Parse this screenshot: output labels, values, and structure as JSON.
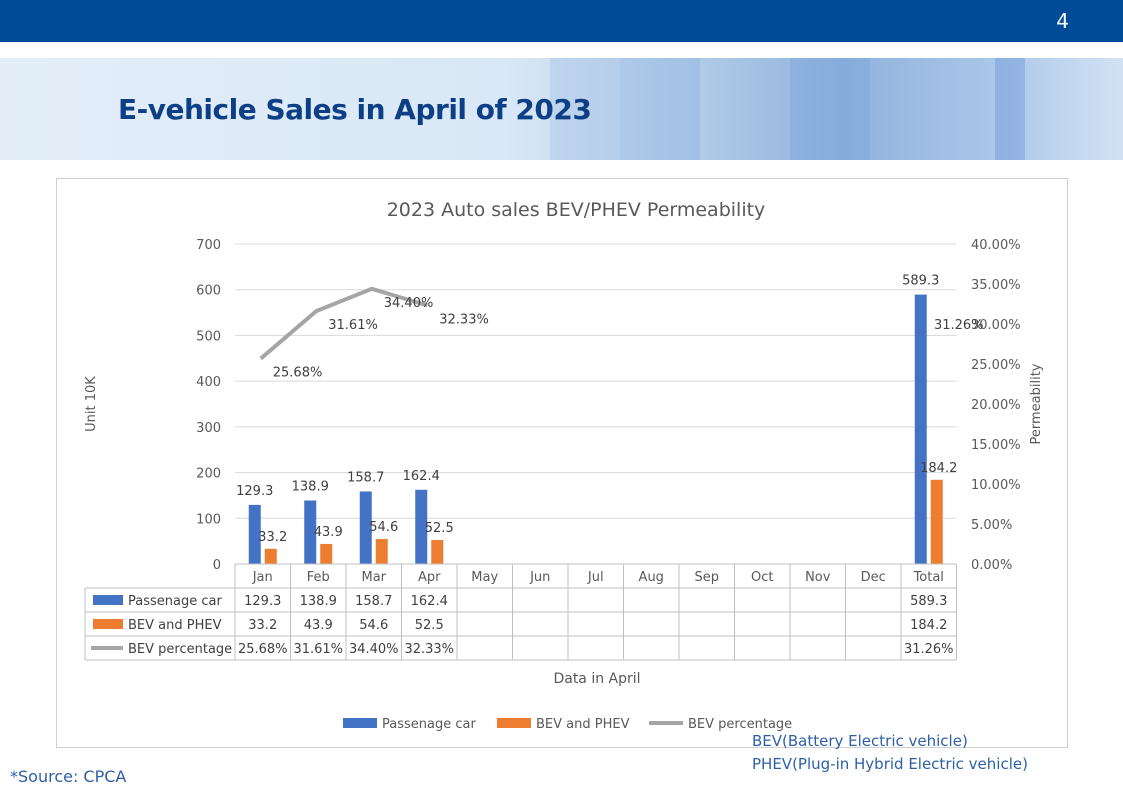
{
  "page_number": "4",
  "slide_title": "E-vehicle Sales in April of 2023",
  "notes": {
    "bev": "BEV(Battery Electric vehicle)",
    "phev": "PHEV(Plug-in Hybrid Electric vehicle)"
  },
  "source": "*Source:  CPCA",
  "colors": {
    "header": "#004b97",
    "title": "#0d3f86",
    "passenger": "#4472c4",
    "bev_phev": "#ed7d31",
    "percentage": "#a5a5a5",
    "note": "#2e5fa8"
  },
  "chart_data": {
    "type": "bar",
    "title": "2023 Auto sales BEV/PHEV Permeability",
    "xlabel": "Data in April",
    "ylabel": "Unit 10K",
    "y2label": "Permeability",
    "ylim": [
      0,
      700
    ],
    "yticks": [
      "0",
      "100",
      "200",
      "300",
      "400",
      "500",
      "600",
      "700"
    ],
    "y2lim": [
      0,
      40
    ],
    "y2ticks": [
      "0.00%",
      "5.00%",
      "10.00%",
      "15.00%",
      "20.00%",
      "25.00%",
      "30.00%",
      "35.00%",
      "40.00%"
    ],
    "categories": [
      "Jan",
      "Feb",
      "Mar",
      "Apr",
      "May",
      "Jun",
      "Jul",
      "Aug",
      "Sep",
      "Oct",
      "Nov",
      "Dec",
      "Total"
    ],
    "grid": "horizontal",
    "legend_position": "bottom",
    "series": [
      {
        "name": "Passenage car",
        "type": "bar",
        "color": "#4472c4",
        "values": [
          129.3,
          138.9,
          158.7,
          162.4,
          null,
          null,
          null,
          null,
          null,
          null,
          null,
          null,
          589.3
        ],
        "labels": [
          "129.3",
          "138.9",
          "158.7",
          "162.4",
          "",
          "",
          "",
          "",
          "",
          "",
          "",
          "",
          "589.3"
        ]
      },
      {
        "name": "BEV and PHEV",
        "type": "bar",
        "color": "#ed7d31",
        "values": [
          33.2,
          43.9,
          54.6,
          52.5,
          null,
          null,
          null,
          null,
          null,
          null,
          null,
          null,
          184.2
        ],
        "labels": [
          "33.2",
          "43.9",
          "54.6",
          "52.5",
          "",
          "",
          "",
          "",
          "",
          "",
          "",
          "",
          "184.2"
        ]
      },
      {
        "name": "BEV percentage",
        "type": "line",
        "axis": "secondary",
        "color": "#a5a5a5",
        "values": [
          25.68,
          31.61,
          34.4,
          32.33,
          null,
          null,
          null,
          null,
          null,
          null,
          null,
          null,
          31.26
        ],
        "labels": [
          "25.68%",
          "31.61%",
          "34.40%",
          "32.33%",
          "",
          "",
          "",
          "",
          "",
          "",
          "",
          "",
          "31.26%"
        ]
      }
    ]
  }
}
